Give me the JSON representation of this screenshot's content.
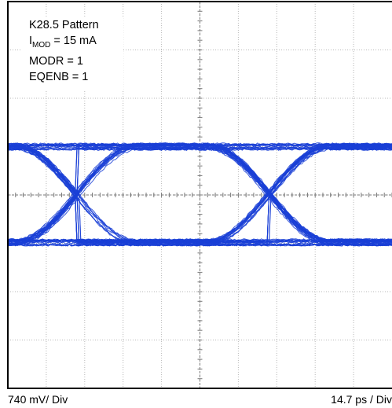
{
  "legend": {
    "pattern": "K28.5 Pattern",
    "imod_label": "I",
    "imod_sub": "MOD",
    "imod_value": " = 15 mA",
    "modr": "MODR = 1",
    "eqenb": "EQENB = 1"
  },
  "footer": {
    "vertical_scale": "740 mV/ Div",
    "horizontal_scale": "14.7 ps / Div"
  },
  "colors": {
    "trace": "#1a3fd6",
    "grid": "#b8b8b8",
    "frame": "#000000"
  },
  "chart_data": {
    "type": "line",
    "subtype": "eye-diagram",
    "x": [
      0,
      1,
      2,
      3,
      4,
      5,
      6,
      7,
      8,
      9,
      10
    ],
    "y_levels": {
      "high": 1.0,
      "low": -0.98
    },
    "crossings_x": [
      1.8,
      6.8
    ],
    "grid": {
      "x_divisions": 10,
      "y_divisions": 8,
      "minor_ticks_per_division": 5
    },
    "xlim": [
      0,
      10
    ],
    "ylim": [
      -4,
      4
    ]
  }
}
